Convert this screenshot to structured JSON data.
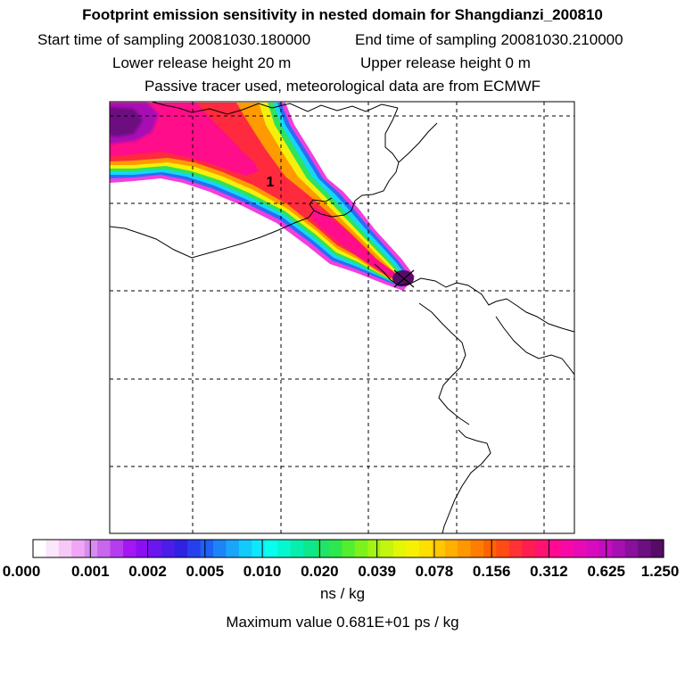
{
  "header": {
    "title": "Footprint emission sensitivity in nested domain for Shangdianzi_200810",
    "start_label": "Start time of sampling 20081030.180000",
    "end_label": "End time of sampling 20081030.210000",
    "lower_label": "Lower release height   20 m",
    "upper_label": "Upper release height    0 m",
    "tracer_note": "Passive tracer used, meteorological data are from ECMWF"
  },
  "chart_data": {
    "type": "heatmap",
    "title": "Footprint emission sensitivity in nested domain for Shangdianzi_200810",
    "colorbar": {
      "ticks": [
        "0.000",
        "0.001",
        "0.002",
        "0.005",
        "0.010",
        "0.020",
        "0.039",
        "0.078",
        "0.156",
        "0.312",
        "0.625",
        "1.250"
      ],
      "units": "ns / kg",
      "colors": [
        "#ffffff",
        "#fbe6fb",
        "#f6c8f6",
        "#eea6f5",
        "#d88bf0",
        "#c866ee",
        "#b53df0",
        "#a416f3",
        "#8a10f2",
        "#6a16ef",
        "#4b1de9",
        "#2f22e3",
        "#2740ee",
        "#1f60f6",
        "#1c84f8",
        "#19a6fa",
        "#14c9fb",
        "#0fe8fa",
        "#08ffee",
        "#05f7cf",
        "#07eeaf",
        "#0de88c",
        "#1ee46a",
        "#2ce84e",
        "#52ee2f",
        "#7cf11a",
        "#a3f313",
        "#c5f50c",
        "#e2f606",
        "#f7f101",
        "#ffdf00",
        "#ffc800",
        "#ffb000",
        "#ff9700",
        "#ff7d00",
        "#ff6300",
        "#ff4b14",
        "#ff3235",
        "#ff1e4f",
        "#ff1270",
        "#ff0a90",
        "#f809a6",
        "#ea09b6",
        "#d80bbf",
        "#c40dbe",
        "#a80fb3",
        "#8a0f9c",
        "#6c0f80",
        "#560c66"
      ]
    },
    "max_value_text": "Maximum value  0.681E+01 ps / kg",
    "release_marker_label": "1",
    "grid": true
  }
}
